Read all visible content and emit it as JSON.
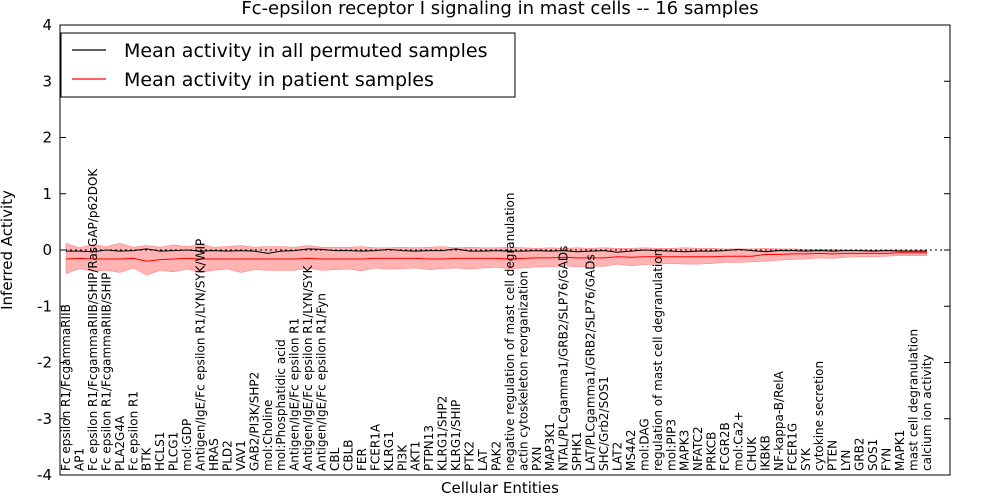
{
  "chart_data": {
    "type": "line",
    "title": "Fc-epsilon receptor I signaling in mast cells -- 16 samples",
    "xlabel": "Cellular Entities",
    "ylabel": "Inferred Activity",
    "ylim": [
      -4,
      4
    ],
    "yticks": [
      -4,
      -3,
      -2,
      -1,
      0,
      1,
      2,
      3,
      4
    ],
    "legend_position": "top-left",
    "categories": [
      "Fc epsilon R1/FcgammaRIIB",
      "AP1",
      "Fc epsilon R1/FcgammaRIIB/SHIP/RasGAP/p62DOK",
      "Fc epsilon R1/FcgammaRIIB/SHIP",
      "PLA2G4A",
      "Fc epsilon R1",
      "BTK",
      "HCLS1",
      "PLCG1",
      "mol:GDP",
      "Antigen/IgE/Fc epsilon R1/LYN/SYK/WIP",
      "HRAS",
      "PLD2",
      "VAV1",
      "GAB2/PI3K/SHP2",
      "mol:Choline",
      "mol:Phosphatidic acid",
      "Antigen/IgE/Fc epsilon R1",
      "Antigen/IgE/Fc epsilon R1/LYN/SYK",
      "Antigen/IgE/Fc epsilon R1/Fyn",
      "CBL",
      "CBLB",
      "FER",
      "FCER1A",
      "KLRG1",
      "PI3K",
      "AKT1",
      "PTPN13",
      "KLRG1/SHP2",
      "KLRG1/SHIP",
      "PTK2",
      "LAT",
      "PAK2",
      "negative regulation of mast cell degranulation",
      "actin cytoskeleton reorganization",
      "PXN",
      "MAP3K1",
      "NTAL/PLCgamma1/GRB2/SLP76/GADs",
      "SPHK1",
      "LAT/PLCgamma1/GRB2/SLP76/GADs",
      "SHC/Grb2/SOS1",
      "LAT2",
      "MS4A2",
      "mol:DAG",
      "regulation of mast cell degranulation",
      "mol:PIP3",
      "MAPK3",
      "NFATC2",
      "PRKCB",
      "FCGR2B",
      "mol:Ca2+",
      "CHUK",
      "IKBKB",
      "NF-kappa-B/RelA",
      "FCER1G",
      "SYK",
      "cytokine secretion",
      "PTEN",
      "LYN",
      "GRB2",
      "SOS1",
      "FYN",
      "MAPK1",
      "mast cell degranulation",
      "calcium ion activity"
    ],
    "series": [
      {
        "name": "Mean activity in all permuted samples",
        "color": "#000000",
        "values": [
          -0.02,
          -0.02,
          -0.03,
          0.0,
          -0.02,
          -0.01,
          0.02,
          -0.02,
          -0.01,
          0.0,
          -0.02,
          -0.01,
          -0.02,
          -0.01,
          -0.02,
          -0.06,
          -0.02,
          -0.01,
          0.02,
          0.01,
          -0.01,
          -0.01,
          -0.02,
          -0.01,
          0.01,
          -0.01,
          -0.02,
          -0.01,
          -0.01,
          0.02,
          -0.02,
          -0.02,
          -0.01,
          -0.02,
          -0.02,
          -0.01,
          -0.02,
          -0.01,
          -0.03,
          -0.02,
          -0.01,
          -0.04,
          -0.02,
          0.0,
          -0.01,
          -0.02,
          -0.03,
          -0.02,
          -0.02,
          -0.01,
          0.01,
          -0.01,
          -0.03,
          -0.01,
          -0.01,
          -0.02,
          -0.01,
          -0.02,
          -0.01,
          -0.01,
          -0.02,
          -0.01,
          -0.02,
          -0.02,
          -0.02
        ]
      },
      {
        "name": "Mean activity in patient samples",
        "color": "#ff0000",
        "band_color": "#ff9999",
        "values": [
          -0.16,
          -0.15,
          -0.16,
          -0.16,
          -0.16,
          -0.15,
          -0.2,
          -0.17,
          -0.16,
          -0.15,
          -0.16,
          -0.16,
          -0.16,
          -0.16,
          -0.16,
          -0.16,
          -0.16,
          -0.16,
          -0.15,
          -0.16,
          -0.16,
          -0.16,
          -0.16,
          -0.15,
          -0.15,
          -0.15,
          -0.15,
          -0.16,
          -0.16,
          -0.15,
          -0.15,
          -0.15,
          -0.15,
          -0.16,
          -0.15,
          -0.14,
          -0.14,
          -0.13,
          -0.14,
          -0.14,
          -0.14,
          -0.12,
          -0.13,
          -0.12,
          -0.12,
          -0.12,
          -0.12,
          -0.12,
          -0.12,
          -0.11,
          -0.11,
          -0.11,
          -0.08,
          -0.08,
          -0.07,
          -0.07,
          -0.06,
          -0.07,
          -0.06,
          -0.06,
          -0.06,
          -0.06,
          -0.05,
          -0.05,
          -0.05
        ],
        "band_low": [
          -0.42,
          -0.33,
          -0.38,
          -0.36,
          -0.4,
          -0.32,
          -0.45,
          -0.36,
          -0.39,
          -0.34,
          -0.4,
          -0.36,
          -0.34,
          -0.4,
          -0.35,
          -0.36,
          -0.36,
          -0.36,
          -0.32,
          -0.36,
          -0.35,
          -0.34,
          -0.37,
          -0.32,
          -0.34,
          -0.33,
          -0.32,
          -0.35,
          -0.33,
          -0.32,
          -0.34,
          -0.32,
          -0.31,
          -0.33,
          -0.32,
          -0.3,
          -0.3,
          -0.28,
          -0.3,
          -0.29,
          -0.29,
          -0.25,
          -0.28,
          -0.26,
          -0.25,
          -0.24,
          -0.25,
          -0.25,
          -0.24,
          -0.22,
          -0.22,
          -0.21,
          -0.2,
          -0.18,
          -0.17,
          -0.16,
          -0.14,
          -0.15,
          -0.13,
          -0.12,
          -0.12,
          -0.11,
          -0.1,
          -0.1,
          -0.1
        ],
        "band_high": [
          0.12,
          0.04,
          0.1,
          0.06,
          0.12,
          0.05,
          0.08,
          0.05,
          0.09,
          0.06,
          0.1,
          0.05,
          0.06,
          0.08,
          0.05,
          0.06,
          0.06,
          0.05,
          0.08,
          0.05,
          0.05,
          0.05,
          0.06,
          0.04,
          0.04,
          0.05,
          0.04,
          0.05,
          0.06,
          0.04,
          0.05,
          0.04,
          0.04,
          0.05,
          0.04,
          0.03,
          0.04,
          0.03,
          0.04,
          0.03,
          0.04,
          0.03,
          0.03,
          0.04,
          0.03,
          0.03,
          0.04,
          0.03,
          0.03,
          0.02,
          0.02,
          0.02,
          0.03,
          0.02,
          0.02,
          0.01,
          0.01,
          0.01,
          0.0,
          0.0,
          0.0,
          0.0,
          0.0,
          0.0,
          0.0
        ]
      }
    ]
  }
}
